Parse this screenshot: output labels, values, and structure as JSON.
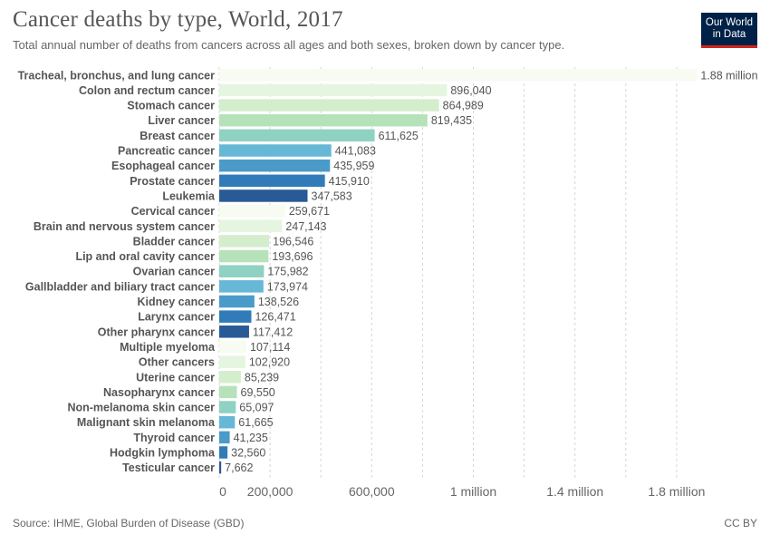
{
  "header": {
    "title": "Cancer deaths by type, World, 2017",
    "subtitle": "Total annual number of deaths from cancers across all ages and both sexes, broken down by cancer type."
  },
  "logo": {
    "line1": "Our World",
    "line2": "in Data"
  },
  "footer": {
    "source": "Source: IHME, Global Burden of Disease (GBD)",
    "license": "CC BY"
  },
  "colors": [
    "#f7fbf1",
    "#e6f5df",
    "#d4eecd",
    "#b6e2ba",
    "#8fd1c2",
    "#66b8d6",
    "#4a9bc9",
    "#317cb8",
    "#2a5a96"
  ],
  "chart_data": {
    "type": "bar",
    "orientation": "horizontal",
    "title": "Cancer deaths by type, World, 2017",
    "xlim": [
      0,
      1950000
    ],
    "grid": true,
    "ticks": [
      {
        "value": 0,
        "label": "0"
      },
      {
        "value": 200000,
        "label": "200,000"
      },
      {
        "value": 600000,
        "label": "600,000"
      },
      {
        "value": 1000000,
        "label": "1 million"
      },
      {
        "value": 1400000,
        "label": "1.4 million"
      },
      {
        "value": 1800000,
        "label": "1.8 million"
      }
    ],
    "gridlines": [
      0,
      200000,
      400000,
      600000,
      800000,
      1000000,
      1200000,
      1400000,
      1600000,
      1800000
    ],
    "categories": [
      "Tracheal, bronchus, and lung cancer",
      "Colon and rectum cancer",
      "Stomach cancer",
      "Liver cancer",
      "Breast cancer",
      "Pancreatic cancer",
      "Esophageal cancer",
      "Prostate cancer",
      "Leukemia",
      "Cervical cancer",
      "Brain and nervous system cancer",
      "Bladder cancer",
      "Lip and oral cavity cancer",
      "Ovarian cancer",
      "Gallbladder and biliary tract cancer",
      "Kidney cancer",
      "Larynx cancer",
      "Other pharynx cancer",
      "Multiple myeloma",
      "Other cancers",
      "Uterine cancer",
      "Nasopharynx cancer",
      "Non-melanoma skin cancer",
      "Malignant skin melanoma",
      "Thyroid cancer",
      "Hodgkin lymphoma",
      "Testicular cancer"
    ],
    "values": [
      1880000,
      896040,
      864989,
      819435,
      611625,
      441083,
      435959,
      415910,
      347583,
      259671,
      247143,
      196546,
      193696,
      175982,
      173974,
      138526,
      126471,
      117412,
      107114,
      102920,
      85239,
      69550,
      65097,
      61665,
      41235,
      32560,
      7662
    ],
    "value_labels": [
      "1.88 million",
      "896,040",
      "864,989",
      "819,435",
      "611,625",
      "441,083",
      "435,959",
      "415,910",
      "347,583",
      "259,671",
      "247,143",
      "196,546",
      "193,696",
      "175,982",
      "173,974",
      "138,526",
      "126,471",
      "117,412",
      "107,114",
      "102,920",
      "85,239",
      "69,550",
      "65,097",
      "61,665",
      "41,235",
      "32,560",
      "7,662"
    ],
    "color_index": [
      0,
      1,
      2,
      3,
      4,
      5,
      6,
      7,
      8,
      0,
      1,
      2,
      3,
      4,
      5,
      6,
      7,
      8,
      0,
      1,
      2,
      3,
      4,
      5,
      6,
      7,
      8
    ]
  }
}
